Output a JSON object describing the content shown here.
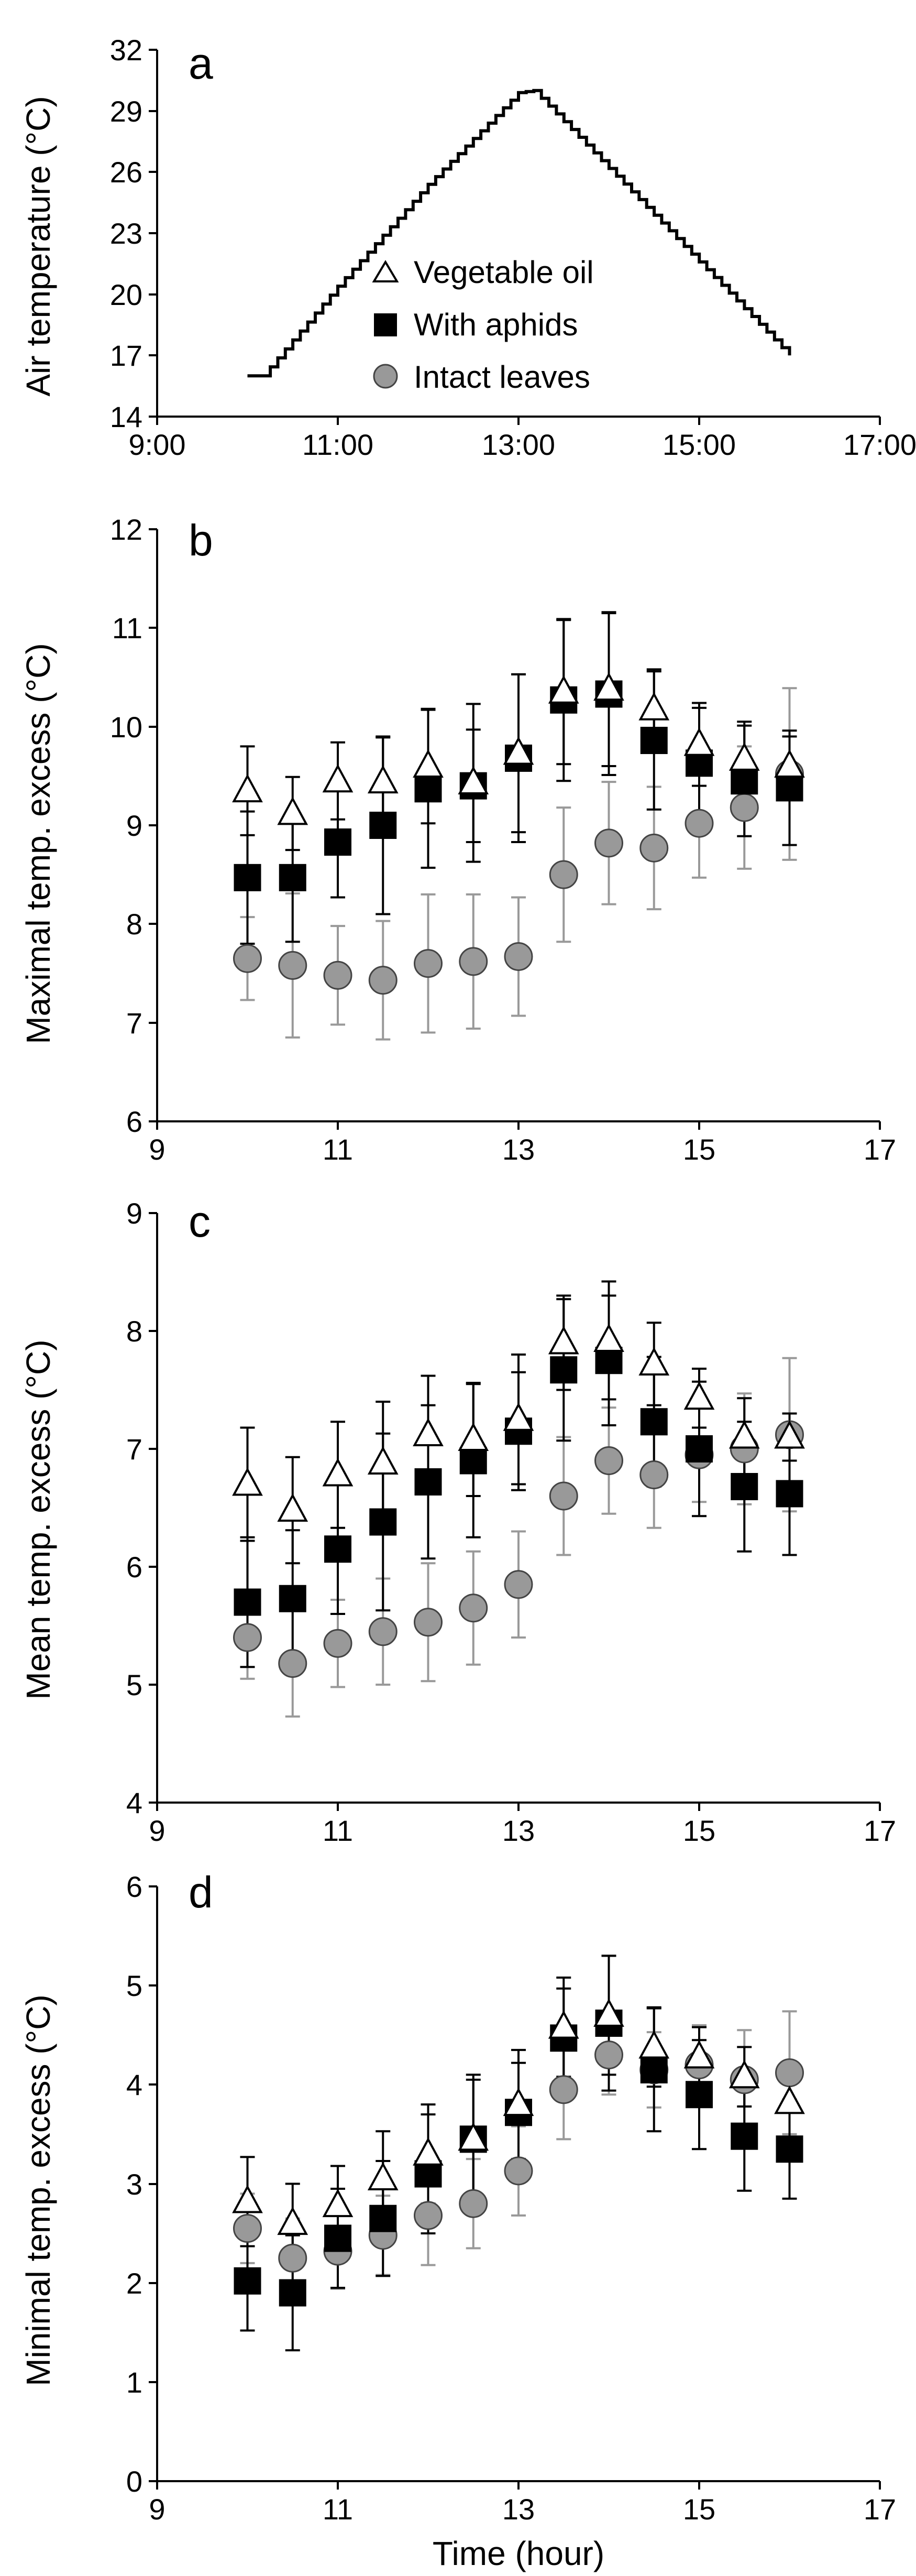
{
  "chart_data": [
    {
      "panel": "a",
      "type": "line",
      "ylabel": "Air temperature (°C)",
      "xlabel": "",
      "ylim": [
        14,
        32
      ],
      "yticks": [
        14,
        17,
        20,
        23,
        26,
        29,
        32
      ],
      "xlim": [
        9,
        17
      ],
      "xticks": [
        9,
        11,
        13,
        15,
        17
      ],
      "xtick_labels": [
        "9:00",
        "11:00",
        "13:00",
        "15:00",
        "17:00"
      ],
      "series": [
        {
          "name": "Air temperature",
          "x": [
            10.0,
            10.17,
            11.0,
            12.0,
            13.0,
            13.17,
            16.0
          ],
          "y": [
            16,
            16,
            20.4,
            25.4,
            29.9,
            30,
            17
          ]
        }
      ],
      "legend": [
        "Vegetable oil",
        "With aphids",
        "Intact leaves"
      ]
    },
    {
      "panel": "b",
      "type": "scatter",
      "ylabel": "Maximal temp. excess (°C)",
      "xlabel": "",
      "ylim": [
        6,
        12
      ],
      "yticks": [
        6,
        7,
        8,
        9,
        10,
        11,
        12
      ],
      "xlim": [
        9,
        17
      ],
      "xticks": [
        9,
        11,
        13,
        15,
        17
      ],
      "x": [
        10,
        10.5,
        11,
        11.5,
        12,
        12.5,
        13,
        13.5,
        14,
        14.5,
        15,
        15.5,
        16
      ],
      "series": [
        {
          "name": "Intact leaves",
          "marker": "circle",
          "values": [
            7.65,
            7.58,
            7.48,
            7.43,
            7.6,
            7.62,
            7.67,
            8.5,
            8.82,
            8.77,
            9.02,
            9.18,
            9.52
          ],
          "err": [
            0.42,
            0.73,
            0.5,
            0.6,
            0.7,
            0.68,
            0.6,
            0.68,
            0.62,
            0.62,
            0.55,
            0.62,
            0.87
          ]
        },
        {
          "name": "With aphids",
          "marker": "square",
          "values": [
            8.47,
            8.47,
            8.83,
            9.0,
            9.37,
            9.4,
            9.68,
            10.27,
            10.33,
            9.86,
            9.63,
            9.45,
            9.38
          ],
          "err": [
            0.67,
            0.65,
            0.56,
            0.9,
            0.8,
            0.57,
            0.85,
            0.82,
            0.82,
            0.7,
            0.56,
            0.56,
            0.58
          ]
        },
        {
          "name": "Vegetable oil",
          "marker": "triangle",
          "values": [
            9.35,
            9.12,
            9.45,
            9.44,
            9.6,
            9.43,
            9.73,
            10.35,
            10.38,
            10.18,
            9.82,
            9.67,
            9.6
          ],
          "err": [
            0.45,
            0.37,
            0.39,
            0.45,
            0.58,
            0.8,
            0.8,
            0.73,
            0.78,
            0.4,
            0.42,
            0.38,
            0.3
          ]
        }
      ]
    },
    {
      "panel": "c",
      "type": "scatter",
      "ylabel": "Mean temp. excess (°C)",
      "xlabel": "",
      "ylim": [
        4,
        9
      ],
      "yticks": [
        4,
        5,
        6,
        7,
        8,
        9
      ],
      "xlim": [
        9,
        17
      ],
      "xticks": [
        9,
        11,
        13,
        15,
        17
      ],
      "x": [
        10,
        10.5,
        11,
        11.5,
        12,
        12.5,
        13,
        13.5,
        14,
        14.5,
        15,
        15.5,
        16
      ],
      "series": [
        {
          "name": "Intact leaves",
          "marker": "circle",
          "values": [
            5.4,
            5.18,
            5.35,
            5.45,
            5.53,
            5.65,
            5.85,
            6.6,
            6.9,
            6.78,
            6.95,
            7.0,
            7.12
          ],
          "err": [
            0.35,
            0.45,
            0.37,
            0.45,
            0.5,
            0.48,
            0.45,
            0.5,
            0.45,
            0.45,
            0.4,
            0.47,
            0.65
          ]
        },
        {
          "name": "With aphids",
          "marker": "square",
          "values": [
            5.7,
            5.73,
            6.15,
            6.38,
            6.72,
            6.9,
            7.15,
            7.67,
            7.75,
            7.23,
            7.0,
            6.68,
            6.62
          ],
          "err": [
            0.55,
            0.58,
            0.55,
            0.75,
            0.65,
            0.65,
            0.5,
            0.6,
            0.55,
            0.55,
            0.57,
            0.55,
            0.52
          ]
        },
        {
          "name": "Vegetable oil",
          "marker": "triangle",
          "values": [
            6.7,
            6.48,
            6.78,
            6.88,
            7.12,
            7.08,
            7.25,
            7.9,
            7.92,
            7.72,
            7.43,
            7.1,
            7.1
          ],
          "err": [
            0.48,
            0.45,
            0.45,
            0.52,
            0.5,
            0.48,
            0.55,
            0.4,
            0.5,
            0.35,
            0.25,
            0.33,
            0.2
          ]
        }
      ]
    },
    {
      "panel": "d",
      "type": "scatter",
      "ylabel": "Minimal temp. excess (°C)",
      "xlabel": "Time (hour)",
      "ylim": [
        0,
        6
      ],
      "yticks": [
        0,
        1,
        2,
        3,
        4,
        5,
        6
      ],
      "xlim": [
        9,
        17
      ],
      "xticks": [
        9,
        11,
        13,
        15,
        17
      ],
      "x": [
        10,
        10.5,
        11,
        11.5,
        12,
        12.5,
        13,
        13.5,
        14,
        14.5,
        15,
        15.5,
        16
      ],
      "series": [
        {
          "name": "Intact leaves",
          "marker": "circle",
          "values": [
            2.55,
            2.25,
            2.32,
            2.48,
            2.68,
            2.8,
            3.13,
            3.95,
            4.3,
            4.15,
            4.2,
            4.05,
            4.12
          ],
          "err": [
            0.35,
            0.4,
            0.38,
            0.4,
            0.5,
            0.45,
            0.45,
            0.5,
            0.4,
            0.38,
            0.4,
            0.5,
            0.62
          ]
        },
        {
          "name": "With aphids",
          "marker": "square",
          "values": [
            2.02,
            1.9,
            2.45,
            2.65,
            3.1,
            3.45,
            3.72,
            4.47,
            4.62,
            4.15,
            3.9,
            3.48,
            3.35
          ],
          "err": [
            0.5,
            0.58,
            0.5,
            0.58,
            0.6,
            0.65,
            0.5,
            0.5,
            0.68,
            0.62,
            0.55,
            0.55,
            0.5
          ]
        },
        {
          "name": "Vegetable oil",
          "marker": "triangle",
          "values": [
            2.82,
            2.6,
            2.78,
            3.05,
            3.3,
            3.45,
            3.8,
            4.58,
            4.7,
            4.38,
            4.28,
            4.08,
            3.82
          ],
          "err": [
            0.45,
            0.4,
            0.4,
            0.48,
            0.5,
            0.6,
            0.55,
            0.5,
            0.6,
            0.4,
            0.3,
            0.3,
            0.35
          ]
        }
      ]
    }
  ]
}
